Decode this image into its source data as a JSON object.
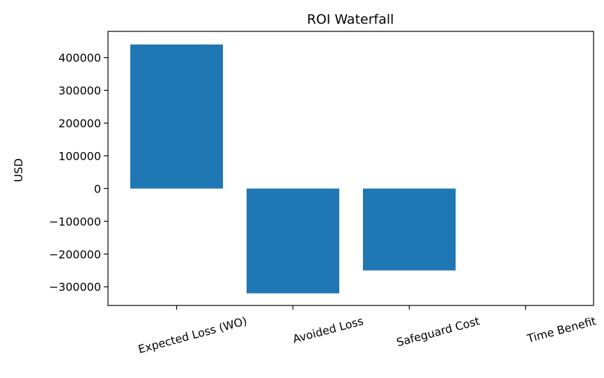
{
  "chart_data": {
    "type": "bar",
    "title": "ROI Waterfall",
    "xlabel": "",
    "ylabel": "USD",
    "categories": [
      "Expected Loss (WO)",
      "Avoided Loss",
      "Safeguard Cost",
      "Time Benefit"
    ],
    "values": [
      440000,
      -320000,
      -250000,
      0
    ],
    "ylim": [
      -357000,
      480000
    ],
    "yticks": [
      400000,
      300000,
      200000,
      100000,
      0,
      -100000,
      -200000,
      -300000
    ],
    "ytick_labels": [
      "400000",
      "300000",
      "200000",
      "100000",
      "0",
      "−100000",
      "−200000",
      "−300000"
    ],
    "bar_color": "#1f77b4",
    "grid": false,
    "xtick_rotation_deg": 15
  }
}
